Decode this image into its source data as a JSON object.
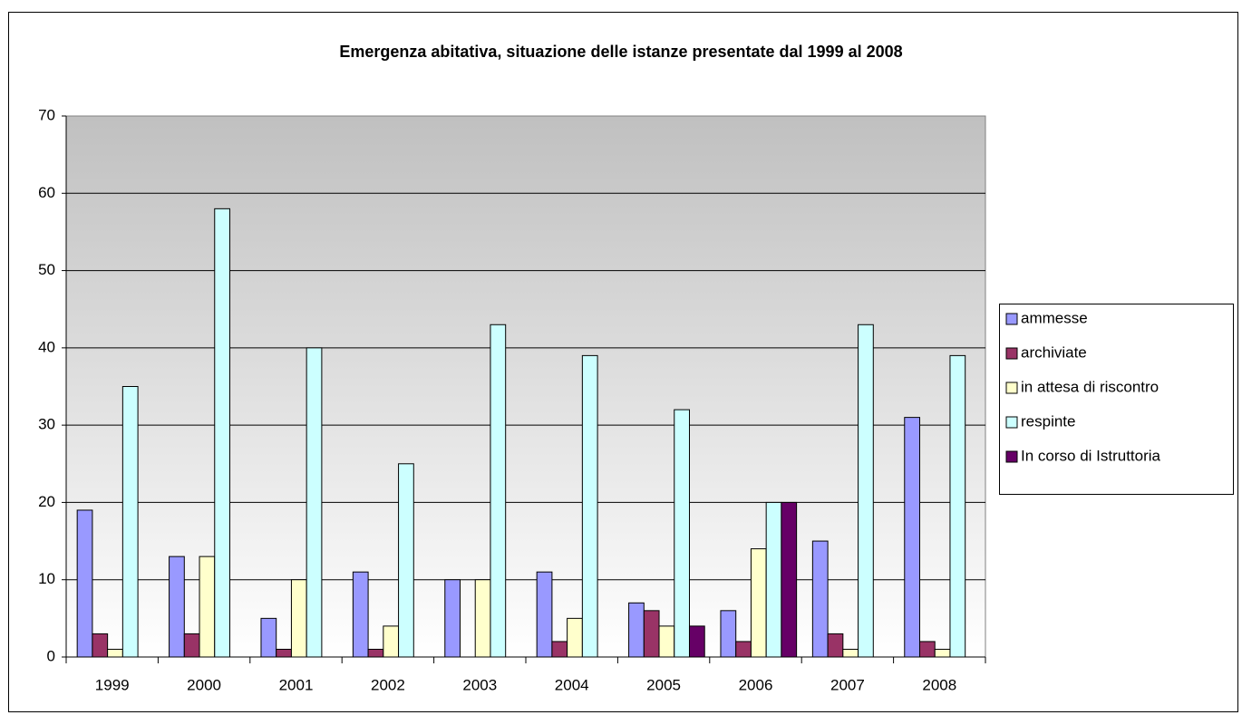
{
  "chart_data": {
    "type": "bar",
    "title": "Emergenza abitativa, situazione delle istanze presentate dal 1999 al 2008",
    "categories": [
      "1999",
      "2000",
      "2001",
      "2002",
      "2003",
      "2004",
      "2005",
      "2006",
      "2007",
      "2008"
    ],
    "series": [
      {
        "name": "ammesse",
        "color": "#9999ff",
        "values": [
          19,
          13,
          5,
          11,
          10,
          11,
          7,
          6,
          15,
          31
        ]
      },
      {
        "name": "archiviate",
        "color": "#993366",
        "values": [
          3,
          3,
          1,
          1,
          0,
          2,
          6,
          2,
          3,
          2
        ]
      },
      {
        "name": "in attesa di riscontro",
        "color": "#ffffcc",
        "values": [
          1,
          13,
          10,
          4,
          10,
          5,
          4,
          14,
          1,
          1
        ]
      },
      {
        "name": "respinte",
        "color": "#ccffff",
        "values": [
          35,
          58,
          40,
          25,
          43,
          39,
          32,
          20,
          43,
          39
        ]
      },
      {
        "name": "In corso di Istruttoria",
        "color": "#660066",
        "values": [
          0,
          0,
          0,
          0,
          0,
          0,
          4,
          20,
          0,
          0
        ]
      }
    ],
    "ylim": [
      0,
      70
    ],
    "yticks": [
      0,
      10,
      20,
      30,
      40,
      50,
      60,
      70
    ],
    "grid": true,
    "legend": "right"
  }
}
